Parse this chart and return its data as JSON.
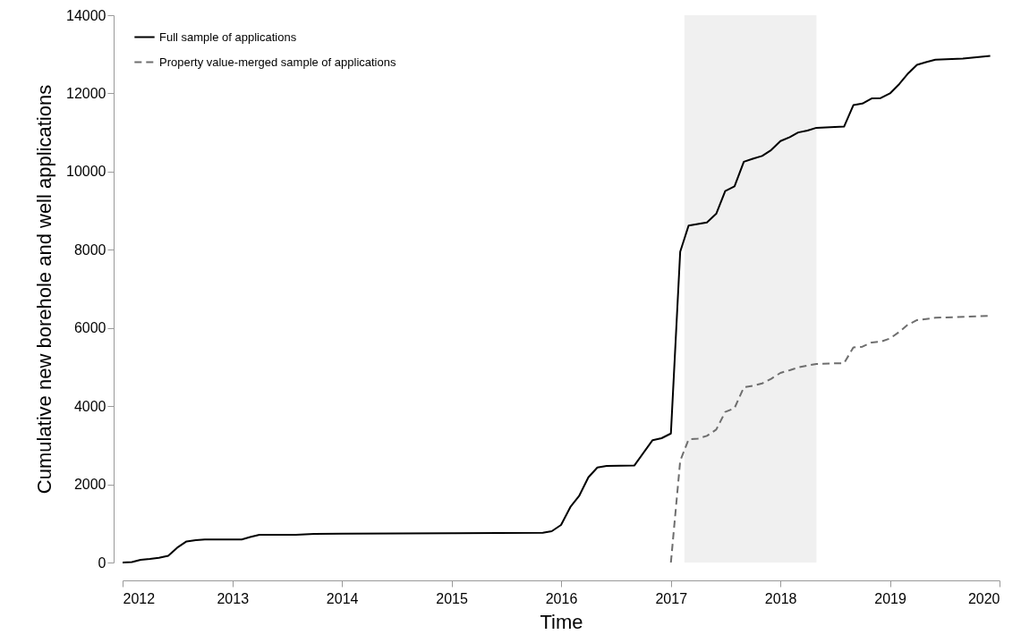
{
  "chart_data": {
    "type": "line",
    "xlabel": "Time",
    "ylabel": "Cumulative new borehole and well applications",
    "xlim": [
      "2012",
      "2020"
    ],
    "xticks": [
      "2012",
      "2013",
      "2014",
      "2015",
      "2016",
      "2017",
      "2018",
      "2019",
      "2020"
    ],
    "ylim": [
      0,
      14000
    ],
    "yticks": [
      0,
      2000,
      4000,
      6000,
      8000,
      10000,
      12000,
      14000
    ],
    "grid": false,
    "legend": "top left",
    "bands": [
      {
        "axis": "x",
        "from": "2017-02-15",
        "to": "2018-05-01",
        "color": "#f0f0f0"
      }
    ],
    "series": [
      {
        "name": "Full sample of applications",
        "color": "#000000",
        "line_style": "solid",
        "x": [
          "2012-01",
          "2012-02",
          "2012-03",
          "2012-04",
          "2012-05",
          "2012-06",
          "2012-07",
          "2012-08",
          "2012-09",
          "2012-10",
          "2013-02",
          "2013-03",
          "2013-04",
          "2013-08",
          "2013-10",
          "2014-01",
          "2015-01",
          "2015-11",
          "2015-12",
          "2016-01",
          "2016-02",
          "2016-03",
          "2016-04",
          "2016-05",
          "2016-06",
          "2016-09",
          "2016-11",
          "2016-12",
          "2017-01",
          "2017-02",
          "2017-03",
          "2017-05",
          "2017-06",
          "2017-07",
          "2017-08",
          "2017-09",
          "2017-10",
          "2017-11",
          "2017-12",
          "2018-01",
          "2018-02",
          "2018-03",
          "2018-04",
          "2018-05",
          "2018-08",
          "2018-09",
          "2018-10",
          "2018-11",
          "2018-12",
          "2019-01",
          "2019-02",
          "2019-03",
          "2019-04",
          "2019-05",
          "2019-06",
          "2019-09",
          "2019-12"
        ],
        "values": [
          0,
          10,
          70,
          90,
          120,
          170,
          380,
          540,
          570,
          590,
          590,
          650,
          710,
          710,
          730,
          740,
          750,
          760,
          800,
          960,
          1420,
          1700,
          2180,
          2430,
          2470,
          2480,
          3130,
          3180,
          3300,
          7950,
          8620,
          8700,
          8920,
          9500,
          9620,
          10250,
          10330,
          10400,
          10550,
          10780,
          10880,
          11000,
          11050,
          11120,
          11150,
          11700,
          11740,
          11870,
          11880,
          12000,
          12240,
          12500,
          12730,
          12800,
          12860,
          12890,
          12960
        ]
      },
      {
        "name": "Property value-merged sample of applications",
        "color": "#6e6e6e",
        "line_style": "dashed",
        "x": [
          "2017-01",
          "2017-02",
          "2017-03",
          "2017-04",
          "2017-05",
          "2017-06",
          "2017-07",
          "2017-08",
          "2017-09",
          "2017-10",
          "2017-11",
          "2017-12",
          "2018-01",
          "2018-02",
          "2018-03",
          "2018-04",
          "2018-05",
          "2018-08",
          "2018-09",
          "2018-10",
          "2018-11",
          "2018-12",
          "2019-01",
          "2019-02",
          "2019-03",
          "2019-04",
          "2019-06",
          "2019-12"
        ],
        "values": [
          0,
          2600,
          3150,
          3170,
          3240,
          3400,
          3850,
          3950,
          4480,
          4520,
          4580,
          4700,
          4850,
          4920,
          4990,
          5040,
          5080,
          5100,
          5500,
          5520,
          5630,
          5650,
          5730,
          5900,
          6080,
          6200,
          6260,
          6310
        ]
      }
    ]
  }
}
